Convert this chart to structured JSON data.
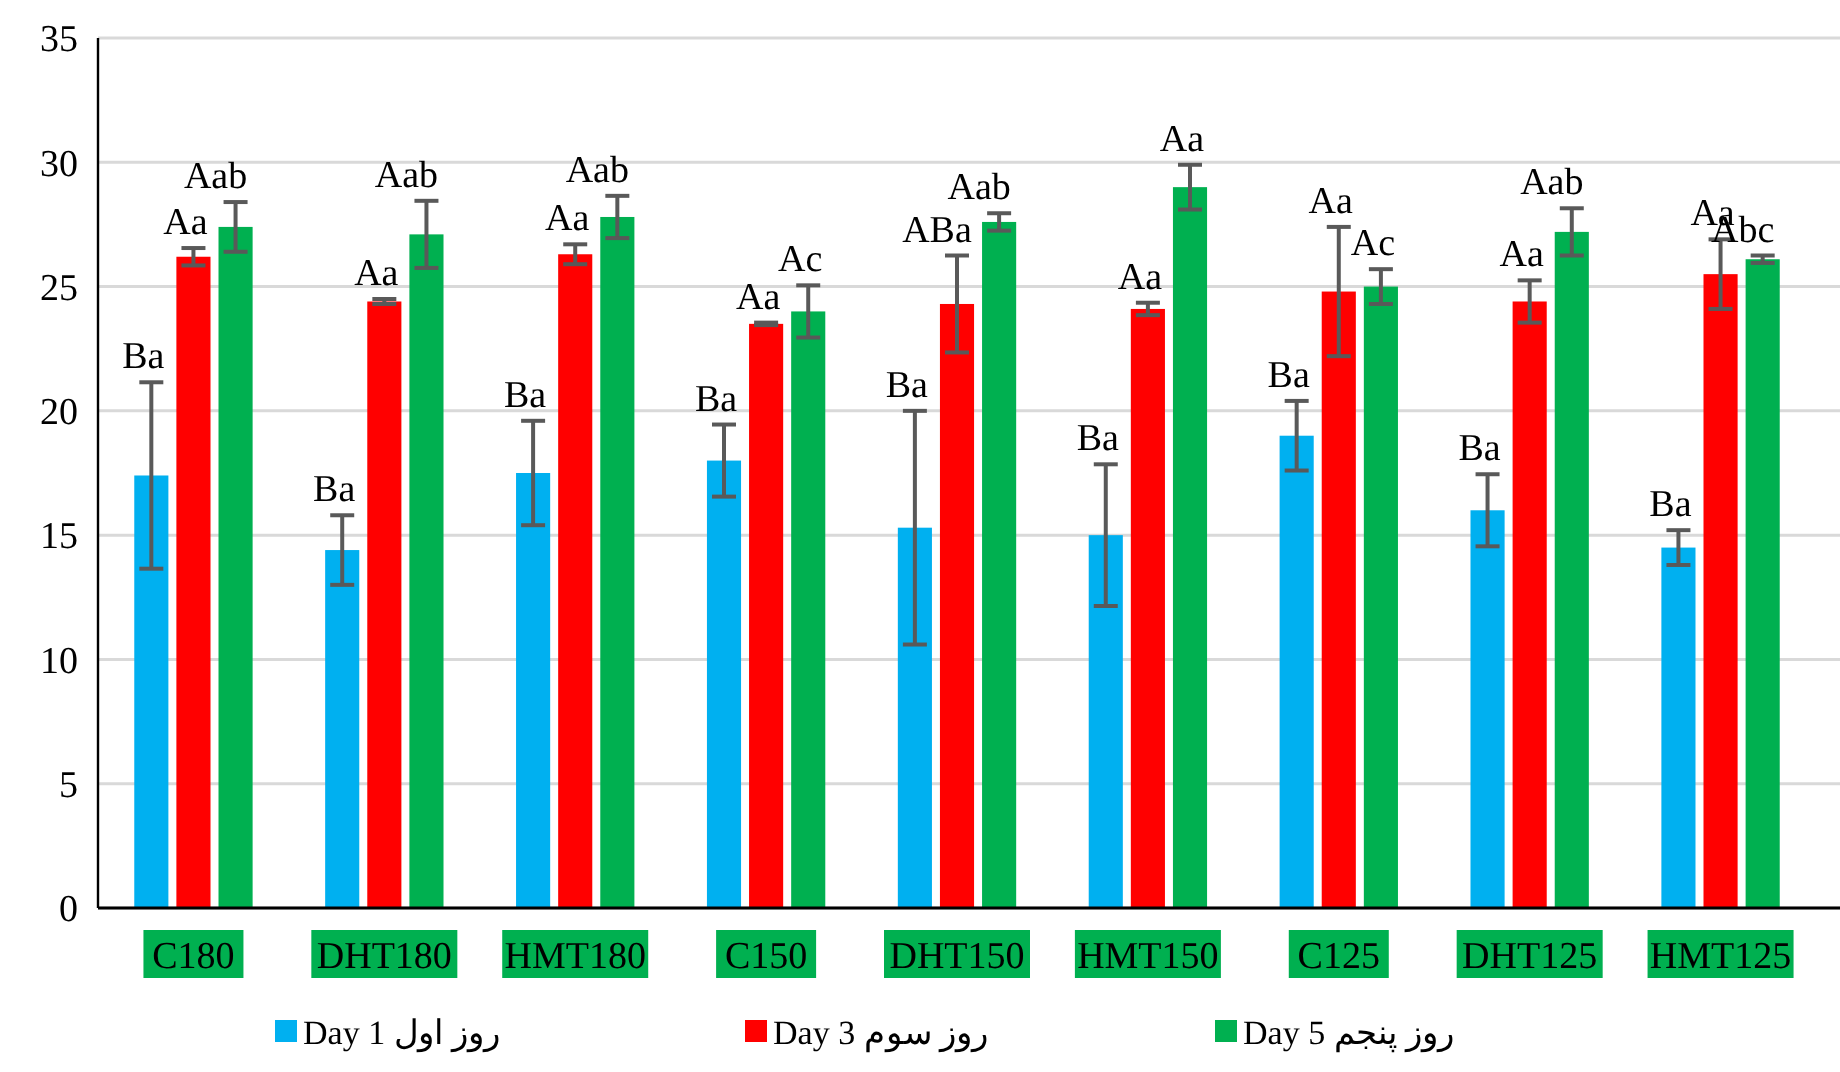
{
  "chart_data": {
    "type": "bar",
    "categories": [
      "C180",
      "DHT180",
      "HMT180",
      "C150",
      "DHT150",
      "HMT150",
      "C125",
      "DHT125",
      "HMT125"
    ],
    "series": [
      {
        "name": "Day 1 روز  اول",
        "color": "#00b0f0",
        "values": [
          17.4,
          14.4,
          17.5,
          18.0,
          15.3,
          15.0,
          19.0,
          16.0,
          14.5
        ],
        "errors": [
          3.75,
          1.4,
          2.1,
          1.45,
          4.7,
          2.85,
          1.4,
          1.45,
          0.7
        ],
        "value_labels": [
          "Ba",
          "Ba",
          "Ba",
          "Ba",
          "Ba",
          "Ba",
          "Ba",
          "Ba",
          "Ba"
        ]
      },
      {
        "name": "Day 3 روز سوم",
        "color": "#ff0000",
        "values": [
          26.2,
          24.4,
          26.3,
          23.5,
          24.3,
          24.1,
          24.8,
          24.4,
          25.5
        ],
        "errors": [
          0.35,
          0.1,
          0.4,
          0.05,
          1.95,
          0.25,
          2.6,
          0.85,
          1.4
        ],
        "value_labels": [
          "Aa",
          "Aa",
          "Aa",
          "Aa",
          "ABa",
          "Aa",
          "Aa",
          "Aa",
          "Aa"
        ]
      },
      {
        "name": "Day 5 روز پنجم",
        "color": "#00b050",
        "values": [
          27.4,
          27.1,
          27.8,
          24.0,
          27.6,
          29.0,
          25.0,
          27.2,
          26.1
        ],
        "errors": [
          1.0,
          1.35,
          0.85,
          1.05,
          0.35,
          0.9,
          0.7,
          0.95,
          0.15
        ],
        "value_labels": [
          "Aab",
          "Aab",
          "Aab",
          "Ac",
          "Aab",
          "Aa",
          "Ac",
          "Aab",
          "Abc"
        ]
      }
    ],
    "ylim": [
      0,
      35
    ],
    "yticks": [
      0,
      5,
      10,
      15,
      20,
      25,
      30,
      35
    ],
    "grid": "y",
    "legend": "bottom"
  }
}
